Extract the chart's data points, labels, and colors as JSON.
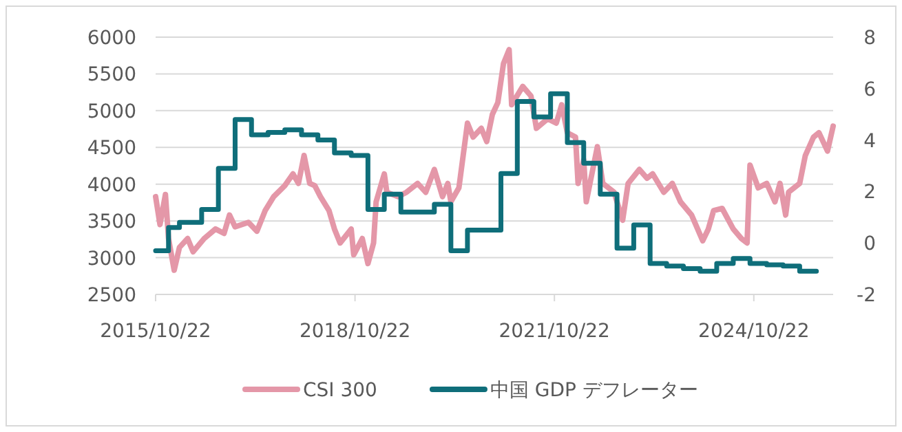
{
  "chart_data": {
    "type": "line",
    "x": [
      "2015-10-22",
      "2015-11-15",
      "2015-12-15",
      "2016-01-01",
      "2016-02-01",
      "2016-03-01",
      "2016-04-15",
      "2016-05-15",
      "2016-07-15",
      "2016-09-15",
      "2016-11-01",
      "2016-12-01",
      "2017-01-01",
      "2017-03-15",
      "2017-05-01",
      "2017-06-15",
      "2017-08-01",
      "2017-10-01",
      "2017-11-15",
      "2017-12-15",
      "2018-01-15",
      "2018-02-15",
      "2018-03-15",
      "2018-04-15",
      "2018-06-01",
      "2018-07-01",
      "2018-08-01",
      "2018-10-01",
      "2018-10-15",
      "2018-12-01",
      "2019-01-01",
      "2019-02-01",
      "2019-02-15",
      "2019-04-01",
      "2019-04-15",
      "2019-06-15",
      "2019-08-01",
      "2019-10-01",
      "2019-11-15",
      "2020-01-01",
      "2020-02-15",
      "2020-03-15",
      "2020-04-01",
      "2020-05-15",
      "2020-07-01",
      "2020-08-01",
      "2020-09-15",
      "2020-10-15",
      "2020-11-15",
      "2020-12-15",
      "2021-01-15",
      "2021-02-15",
      "2021-03-01",
      "2021-05-01",
      "2021-06-15",
      "2021-07-15",
      "2021-09-15",
      "2021-11-01",
      "2021-12-01",
      "2022-01-01",
      "2022-02-15",
      "2022-03-01",
      "2022-04-01",
      "2022-04-15",
      "2022-06-15",
      "2022-07-15",
      "2022-09-15",
      "2022-11-01",
      "2022-12-01",
      "2023-02-01",
      "2023-03-15",
      "2023-04-15",
      "2023-06-15",
      "2023-08-01",
      "2023-09-15",
      "2023-11-15",
      "2024-01-15",
      "2024-02-15",
      "2024-03-15",
      "2024-05-01",
      "2024-07-01",
      "2024-08-15",
      "2024-09-15",
      "2024-10-01",
      "2024-11-15",
      "2025-01-01",
      "2025-02-15",
      "2025-03-15",
      "2025-04-15",
      "2025-05-01",
      "2025-07-01",
      "2025-08-01",
      "2025-09-15",
      "2025-10-15",
      "2025-12-01",
      "2026-01-01"
    ],
    "series": [
      {
        "name": "CSI 300",
        "color": "#e497a8",
        "values": [
          3830,
          3450,
          3860,
          3260,
          2830,
          3140,
          3260,
          3080,
          3260,
          3390,
          3330,
          3580,
          3420,
          3480,
          3360,
          3640,
          3830,
          3980,
          4140,
          4010,
          4390,
          4010,
          3980,
          3830,
          3640,
          3390,
          3200,
          3390,
          3040,
          3260,
          2920,
          3200,
          3760,
          4140,
          3890,
          3830,
          3890,
          4010,
          3890,
          4200,
          3830,
          4010,
          3760,
          3950,
          4830,
          4640,
          4760,
          4580,
          4950,
          5110,
          5640,
          5830,
          5080,
          5330,
          5200,
          4760,
          4890,
          4830,
          5080,
          4700,
          4640,
          4010,
          4330,
          3760,
          4510,
          4010,
          3890,
          3510,
          4010,
          4200,
          4080,
          4140,
          3890,
          4010,
          3760,
          3580,
          3230,
          3390,
          3640,
          3670,
          3390,
          3260,
          3200,
          4260,
          3950,
          4010,
          3760,
          4010,
          3580,
          3890,
          4010,
          4390,
          4640,
          4700,
          4450,
          4790
        ]
      },
      {
        "name": "中国 GDP デフレーター",
        "color": "#0f6e7a",
        "type": "step",
        "axis": "y2",
        "x": [
          "2015-10-22",
          "2016-01",
          "2016-03",
          "2016-07",
          "2016-10",
          "2017-01",
          "2017-04",
          "2017-07",
          "2017-10",
          "2018-01",
          "2018-04",
          "2018-07",
          "2018-10",
          "2019-01",
          "2019-04",
          "2019-07",
          "2020-01",
          "2020-04",
          "2020-07",
          "2021-01",
          "2021-04",
          "2021-07",
          "2021-10",
          "2022-01",
          "2022-04",
          "2022-07",
          "2022-10",
          "2023-01",
          "2023-04",
          "2023-07",
          "2023-10",
          "2024-01",
          "2024-04",
          "2024-07",
          "2024-10",
          "2025-01",
          "2025-04",
          "2025-07",
          "2025-10"
        ],
        "values": [
          -0.3,
          0.6,
          0.8,
          1.3,
          2.9,
          4.8,
          4.2,
          4.3,
          4.4,
          4.2,
          4.0,
          3.5,
          3.4,
          1.3,
          1.9,
          1.2,
          1.5,
          -0.3,
          0.5,
          2.7,
          5.5,
          4.9,
          5.8,
          3.9,
          3.1,
          1.9,
          -0.2,
          0.7,
          -0.8,
          -0.9,
          -1.0,
          -1.1,
          -0.8,
          -0.6,
          -0.8,
          -0.85,
          -0.9,
          -1.1,
          -1.1
        ]
      }
    ],
    "xlim": [
      "2015-10-22",
      "2026-01-01"
    ],
    "xticks": [
      {
        "value": "2015-10-22",
        "label": "2015/10/22"
      },
      {
        "value": "2018-10-22",
        "label": "2018/10/22"
      },
      {
        "value": "2021-10-22",
        "label": "2021/10/22"
      },
      {
        "value": "2024-10-22",
        "label": "2024/10/22"
      }
    ],
    "ylim": [
      2500,
      6000
    ],
    "yticks": [
      2500,
      3000,
      3500,
      4000,
      4500,
      5000,
      5500,
      6000
    ],
    "y2lim": [
      -2,
      8
    ],
    "y2ticks": [
      -2,
      0,
      2,
      4,
      6,
      8
    ],
    "grid": "y",
    "legend": "bottom",
    "marker": "none",
    "line_style": "solid"
  }
}
